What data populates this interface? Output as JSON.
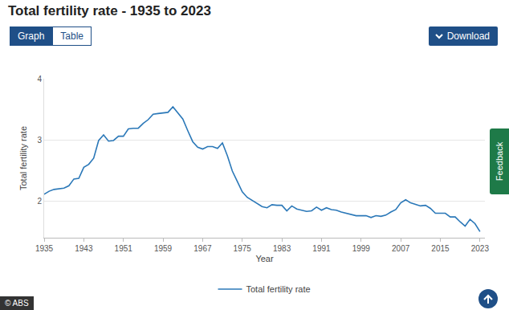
{
  "page": {
    "tabs": [
      "Graph",
      "Table"
    ],
    "button": "Download",
    "side_tab": "Feedback",
    "credit": "© ABS"
  },
  "chart_data": {
    "type": "line",
    "title": "Total fertility rate - 1935 to 2023",
    "xlabel": "Year",
    "ylabel": "Total fertility rate",
    "x": [
      1935,
      1936,
      1937,
      1938,
      1939,
      1940,
      1941,
      1942,
      1943,
      1944,
      1945,
      1946,
      1947,
      1948,
      1949,
      1950,
      1951,
      1952,
      1953,
      1954,
      1955,
      1956,
      1957,
      1958,
      1959,
      1960,
      1961,
      1962,
      1963,
      1964,
      1965,
      1966,
      1967,
      1968,
      1969,
      1970,
      1971,
      1972,
      1973,
      1974,
      1975,
      1976,
      1977,
      1978,
      1979,
      1980,
      1981,
      1982,
      1983,
      1984,
      1985,
      1986,
      1987,
      1988,
      1989,
      1990,
      1991,
      1992,
      1993,
      1994,
      1995,
      1996,
      1997,
      1998,
      1999,
      2000,
      2001,
      2002,
      2003,
      2004,
      2005,
      2006,
      2007,
      2008,
      2009,
      2010,
      2011,
      2012,
      2013,
      2014,
      2015,
      2016,
      2017,
      2018,
      2019,
      2020,
      2021,
      2022,
      2023
    ],
    "series": [
      {
        "name": "Total fertility rate",
        "color": "#2b78b8",
        "values": [
          2.11,
          2.16,
          2.19,
          2.2,
          2.21,
          2.25,
          2.36,
          2.37,
          2.55,
          2.6,
          2.7,
          2.99,
          3.08,
          2.98,
          2.99,
          3.06,
          3.06,
          3.18,
          3.19,
          3.19,
          3.27,
          3.33,
          3.42,
          3.43,
          3.44,
          3.45,
          3.54,
          3.44,
          3.34,
          3.15,
          2.97,
          2.88,
          2.85,
          2.89,
          2.89,
          2.86,
          2.95,
          2.74,
          2.49,
          2.32,
          2.15,
          2.06,
          2.01,
          1.95,
          1.91,
          1.89,
          1.94,
          1.93,
          1.93,
          1.84,
          1.92,
          1.87,
          1.85,
          1.83,
          1.84,
          1.9,
          1.85,
          1.89,
          1.86,
          1.85,
          1.82,
          1.8,
          1.78,
          1.76,
          1.76,
          1.76,
          1.73,
          1.76,
          1.75,
          1.77,
          1.82,
          1.86,
          1.97,
          2.02,
          1.97,
          1.95,
          1.92,
          1.93,
          1.88,
          1.8,
          1.8,
          1.8,
          1.74,
          1.74,
          1.66,
          1.59,
          1.7,
          1.63,
          1.5
        ]
      }
    ],
    "xlim": [
      1935,
      2024
    ],
    "xticks": [
      1935,
      1943,
      1951,
      1959,
      1967,
      1975,
      1983,
      1991,
      1999,
      2007,
      2015,
      2023
    ],
    "ylim": [
      1.4,
      4
    ],
    "yticks": [
      2,
      3,
      4
    ],
    "grid": true,
    "legend": "bottom"
  }
}
